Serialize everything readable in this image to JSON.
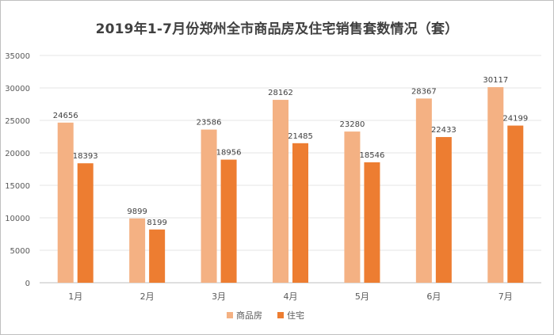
{
  "chart_data": {
    "type": "bar",
    "title": "2019年1-7月份郑州全市商品房及住宅销售套数情况（套）",
    "categories": [
      "1月",
      "2月",
      "3月",
      "4月",
      "5月",
      "6月",
      "7月"
    ],
    "series": [
      {
        "name": "商品房",
        "values": [
          24656,
          9899,
          23586,
          28162,
          23280,
          28367,
          30117
        ],
        "color": "#f4b183"
      },
      {
        "name": "住宅",
        "values": [
          18393,
          8199,
          18956,
          21485,
          18546,
          22433,
          24199
        ],
        "color": "#ed7d31"
      }
    ],
    "ylim": [
      0,
      35000
    ],
    "yticks": [
      0,
      5000,
      10000,
      15000,
      20000,
      25000,
      30000,
      35000
    ],
    "grid": true,
    "legend": "bottom"
  }
}
